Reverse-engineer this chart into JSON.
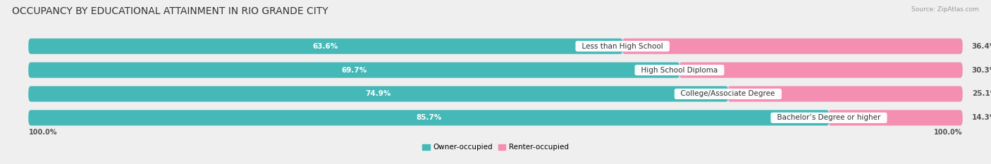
{
  "title": "OCCUPANCY BY EDUCATIONAL ATTAINMENT IN RIO GRANDE CITY",
  "source": "Source: ZipAtlas.com",
  "categories": [
    "Less than High School",
    "High School Diploma",
    "College/Associate Degree",
    "Bachelor’s Degree or higher"
  ],
  "owner_pct": [
    63.6,
    69.7,
    74.9,
    85.7
  ],
  "renter_pct": [
    36.4,
    30.3,
    25.1,
    14.3
  ],
  "owner_color": "#45b8b8",
  "renter_color": "#f48fb1",
  "bg_color": "#efefef",
  "bar_bg_color": "#dcdcdc",
  "title_fontsize": 10,
  "label_fontsize": 7.5,
  "pct_fontsize": 7.5,
  "bar_height": 0.62,
  "x_axis_label_left": "100.0%",
  "x_axis_label_right": "100.0%"
}
